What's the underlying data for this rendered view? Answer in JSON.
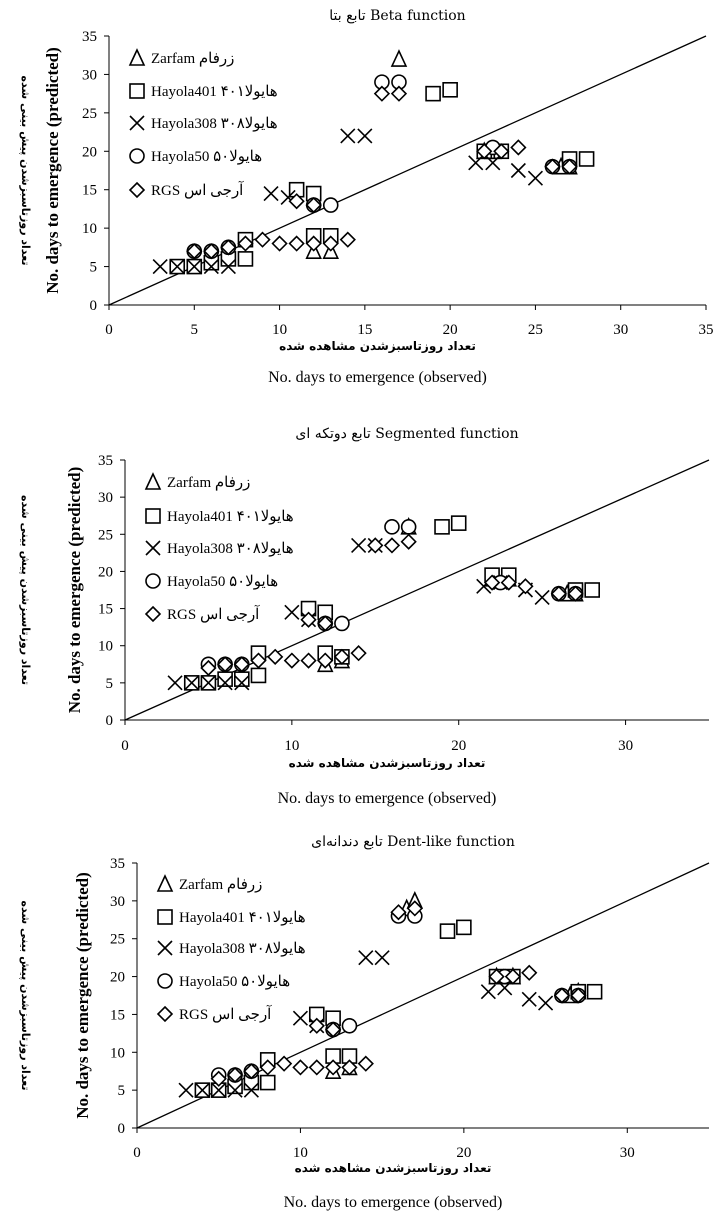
{
  "chart_data": [
    {
      "type": "scatter",
      "title": "تابع بتا Beta function",
      "xlabel_fa": "تعداد روزتاسبزشدن مشاهده شده",
      "xlabel": "No. days to emergence (observed)",
      "ylabel_fa": "تعداد روزتاسبزشدن پیش بینی شده",
      "ylabel": "No. days to emergence (predicted)",
      "xlim": [
        0,
        35
      ],
      "ylim": [
        0,
        35
      ],
      "xticks": [
        "0",
        "5",
        "10",
        "15",
        "20",
        "25",
        "30",
        "35"
      ],
      "yticks": [
        "0",
        "5",
        "10",
        "15",
        "20",
        "25",
        "30",
        "35"
      ],
      "grid": false,
      "legend": "top-left",
      "reference_line": "1:1",
      "series": [
        {
          "name": "Zarfam زرفام",
          "marker": "triangle",
          "points": [
            [
              17,
              32
            ],
            [
              22,
              20
            ],
            [
              22.5,
              20
            ],
            [
              27,
              18
            ],
            [
              26.5,
              18
            ],
            [
              12,
              7
            ],
            [
              13,
              7
            ]
          ]
        },
        {
          "name": "Hayola401 هایولا۴۰۱",
          "marker": "square",
          "points": [
            [
              19,
              27.5
            ],
            [
              20,
              28
            ],
            [
              22,
              20
            ],
            [
              23,
              20
            ],
            [
              27,
              19
            ],
            [
              28,
              19
            ],
            [
              11,
              15
            ],
            [
              12,
              14.5
            ],
            [
              8,
              8.5
            ],
            [
              8,
              6
            ],
            [
              12,
              9
            ],
            [
              13,
              9
            ],
            [
              4,
              5
            ],
            [
              5,
              5
            ],
            [
              6,
              5.5
            ],
            [
              7,
              6
            ]
          ]
        },
        {
          "name": "Hayola308 هایولا۳۰۸",
          "marker": "x",
          "points": [
            [
              14,
              22
            ],
            [
              15,
              22
            ],
            [
              21.5,
              18.5
            ],
            [
              22.5,
              18.5
            ],
            [
              24,
              17.5
            ],
            [
              25,
              16.5
            ],
            [
              9.5,
              14.5
            ],
            [
              10.5,
              14
            ],
            [
              3,
              5
            ],
            [
              4,
              5
            ],
            [
              5,
              5
            ],
            [
              6,
              5
            ],
            [
              7,
              5
            ]
          ]
        },
        {
          "name": "Hayola50 هایولا۵۰",
          "marker": "circle",
          "points": [
            [
              16,
              29
            ],
            [
              17,
              29
            ],
            [
              22.5,
              20.5
            ],
            [
              26,
              18
            ],
            [
              27,
              18
            ],
            [
              12,
              13
            ],
            [
              13,
              13
            ],
            [
              5,
              7
            ],
            [
              6,
              7
            ],
            [
              7,
              7.5
            ]
          ]
        },
        {
          "name": "RGS آرجی اس",
          "marker": "diamond",
          "points": [
            [
              16,
              27.5
            ],
            [
              17,
              27.5
            ],
            [
              22,
              20
            ],
            [
              23,
              20
            ],
            [
              24,
              20.5
            ],
            [
              26,
              18
            ],
            [
              27,
              18
            ],
            [
              11,
              13.5
            ],
            [
              12,
              13
            ],
            [
              8,
              8
            ],
            [
              9,
              8.5
            ],
            [
              10,
              8
            ],
            [
              11,
              8
            ],
            [
              12,
              8
            ],
            [
              13,
              8
            ],
            [
              14,
              8.5
            ],
            [
              5,
              7
            ],
            [
              6,
              7
            ],
            [
              7,
              7.5
            ]
          ]
        }
      ]
    },
    {
      "type": "scatter",
      "title": "تابع دوتکه ای Segmented function",
      "xlabel_fa": "تعداد روزتاسبزشدن مشاهده شده",
      "xlabel": "No. days to emergence (observed)",
      "ylabel_fa": "تعداد روزتاسبزشدن پیش بینی شده",
      "ylabel": "No. days to emergence (predicted)",
      "xlim": [
        0,
        35
      ],
      "ylim": [
        0,
        35
      ],
      "xticks": [
        "0",
        "10",
        "20",
        "30"
      ],
      "yticks": [
        "0",
        "5",
        "10",
        "15",
        "20",
        "25",
        "30",
        "35"
      ],
      "grid": false,
      "legend": "top-left",
      "reference_line": "1:1",
      "series": [
        {
          "name": "Zarfam زرفام",
          "marker": "triangle",
          "points": [
            [
              17,
              26
            ],
            [
              22,
              19
            ],
            [
              23,
              19
            ],
            [
              27,
              17
            ],
            [
              26.5,
              17
            ],
            [
              12,
              7.5
            ],
            [
              13,
              8
            ]
          ]
        },
        {
          "name": "Hayola401 هایولا۴۰۱",
          "marker": "square",
          "points": [
            [
              19,
              26
            ],
            [
              20,
              26.5
            ],
            [
              22,
              19.5
            ],
            [
              23,
              19.5
            ],
            [
              27,
              17.5
            ],
            [
              28,
              17.5
            ],
            [
              11,
              15
            ],
            [
              12,
              14.5
            ],
            [
              8,
              9
            ],
            [
              8,
              6
            ],
            [
              12,
              9
            ],
            [
              13,
              8.5
            ],
            [
              4,
              5
            ],
            [
              5,
              5
            ],
            [
              6,
              5.5
            ],
            [
              7,
              5.5
            ]
          ]
        },
        {
          "name": "Hayola308 هایولا۳۰۸",
          "marker": "x",
          "points": [
            [
              14,
              23.5
            ],
            [
              15,
              23.5
            ],
            [
              21.5,
              18
            ],
            [
              22.5,
              18.5
            ],
            [
              24,
              17.5
            ],
            [
              25,
              16.5
            ],
            [
              10,
              14.5
            ],
            [
              11,
              13.5
            ],
            [
              3,
              5
            ],
            [
              4,
              5
            ],
            [
              5,
              5
            ],
            [
              6,
              5
            ],
            [
              7,
              5
            ]
          ]
        },
        {
          "name": "Hayola50 هایولا۵۰",
          "marker": "circle",
          "points": [
            [
              16,
              26
            ],
            [
              17,
              26
            ],
            [
              22.5,
              18.5
            ],
            [
              26,
              17
            ],
            [
              27,
              17
            ],
            [
              12,
              13
            ],
            [
              13,
              13
            ],
            [
              5,
              7.5
            ],
            [
              6,
              7.5
            ],
            [
              7,
              7.5
            ]
          ]
        },
        {
          "name": "RGS آرجی اس",
          "marker": "diamond",
          "points": [
            [
              15,
              23.5
            ],
            [
              16,
              23.5
            ],
            [
              17,
              24
            ],
            [
              22,
              18.5
            ],
            [
              23,
              18.5
            ],
            [
              24,
              18
            ],
            [
              26,
              17
            ],
            [
              27,
              17
            ],
            [
              11,
              13.5
            ],
            [
              12,
              13
            ],
            [
              8,
              8
            ],
            [
              9,
              8.5
            ],
            [
              10,
              8
            ],
            [
              11,
              8
            ],
            [
              12,
              8
            ],
            [
              13,
              8.5
            ],
            [
              14,
              9
            ],
            [
              5,
              7
            ],
            [
              6,
              7.5
            ],
            [
              7,
              7.5
            ]
          ]
        }
      ]
    },
    {
      "type": "scatter",
      "title": "تابع دندانه‌ای Dent-like function",
      "xlabel_fa": "تعداد روزتاسبزشدن مشاهده شده",
      "xlabel": "No. days to emergence (observed)",
      "ylabel_fa": "تعداد روزتاسبزشدن پیش بینی شده",
      "ylabel": "No. days to emergence (predicted)",
      "xlim": [
        0,
        35
      ],
      "ylim": [
        0,
        35
      ],
      "xticks": [
        "0",
        "10",
        "20",
        "30"
      ],
      "yticks": [
        "0",
        "5",
        "10",
        "15",
        "20",
        "25",
        "30",
        "35"
      ],
      "grid": false,
      "legend": "top-left",
      "reference_line": "1:1",
      "series": [
        {
          "name": "Zarfam زرفام",
          "marker": "triangle",
          "points": [
            [
              16.5,
              29
            ],
            [
              17,
              30
            ],
            [
              22,
              20
            ],
            [
              23,
              20
            ],
            [
              27,
              18
            ],
            [
              26.5,
              17.5
            ],
            [
              12,
              7.5
            ],
            [
              13,
              8
            ]
          ]
        },
        {
          "name": "Hayola401 هایولا۴۰۱",
          "marker": "square",
          "points": [
            [
              19,
              26
            ],
            [
              20,
              26.5
            ],
            [
              22,
              20
            ],
            [
              23,
              20
            ],
            [
              27,
              18
            ],
            [
              28,
              18
            ],
            [
              11,
              15
            ],
            [
              12,
              14.5
            ],
            [
              8,
              9
            ],
            [
              8,
              6
            ],
            [
              12,
              9.5
            ],
            [
              13,
              9.5
            ],
            [
              4,
              5
            ],
            [
              5,
              5
            ],
            [
              6,
              5.5
            ],
            [
              7,
              6
            ]
          ]
        },
        {
          "name": "Hayola308 هایولا۳۰۸",
          "marker": "x",
          "points": [
            [
              14,
              22.5
            ],
            [
              15,
              22.5
            ],
            [
              21.5,
              18
            ],
            [
              22.5,
              18.5
            ],
            [
              24,
              17
            ],
            [
              25,
              16.5
            ],
            [
              10,
              14.5
            ],
            [
              11,
              13.5
            ],
            [
              3,
              5
            ],
            [
              4,
              5
            ],
            [
              5,
              5
            ],
            [
              6,
              5
            ],
            [
              7,
              5
            ]
          ]
        },
        {
          "name": "Hayola50 هایولا۵۰",
          "marker": "circle",
          "points": [
            [
              16,
              28
            ],
            [
              17,
              28
            ],
            [
              22.5,
              20
            ],
            [
              26,
              17.5
            ],
            [
              27,
              17.5
            ],
            [
              12,
              13
            ],
            [
              13,
              13.5
            ],
            [
              5,
              7
            ],
            [
              6,
              7
            ],
            [
              7,
              7.5
            ]
          ]
        },
        {
          "name": "RGS آرجی اس",
          "marker": "diamond",
          "points": [
            [
              16,
              28.5
            ],
            [
              17,
              29
            ],
            [
              22,
              20
            ],
            [
              23,
              20
            ],
            [
              24,
              20.5
            ],
            [
              26,
              17.5
            ],
            [
              27,
              17.5
            ],
            [
              11,
              13.5
            ],
            [
              12,
              13
            ],
            [
              8,
              8
            ],
            [
              9,
              8.5
            ],
            [
              10,
              8
            ],
            [
              11,
              8
            ],
            [
              12,
              8
            ],
            [
              13,
              8
            ],
            [
              14,
              8.5
            ],
            [
              5,
              6.5
            ],
            [
              6,
              7
            ],
            [
              7,
              7.5
            ]
          ]
        }
      ]
    }
  ]
}
